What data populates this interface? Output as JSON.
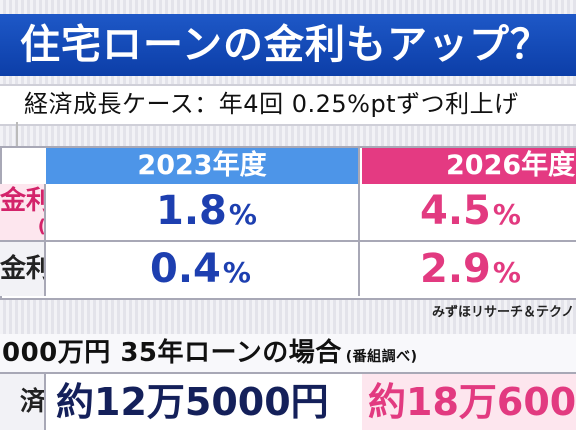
{
  "title": "住宅ローンの金利もアップ？",
  "subtitle": "経済成長ケース：年4回 0.25%ptずつ利上げ",
  "table": {
    "headers": [
      "2023年度",
      "2026年度"
    ],
    "rows": [
      {
        "label": "金利",
        "label_sub": "(",
        "values": [
          "1.8",
          "4.5"
        ],
        "unit": "%"
      },
      {
        "label": "金利",
        "values": [
          "0.4",
          "2.9"
        ],
        "unit": "%"
      }
    ],
    "source": "みずほリサーチ＆テクノ"
  },
  "loan": {
    "text": "000万円 35年ローンの場合",
    "note": "(番組調べ)",
    "label": "済",
    "values": [
      "約12万5000円",
      "約18万600"
    ]
  }
}
